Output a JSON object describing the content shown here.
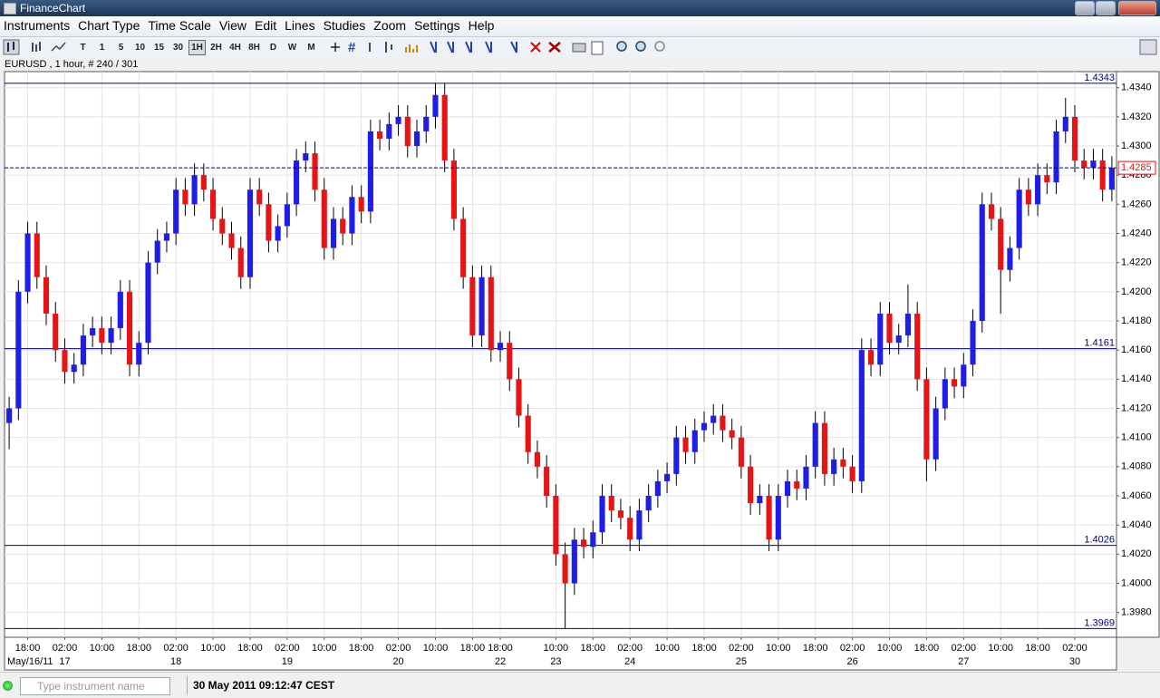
{
  "app": {
    "title": "FinanceChart",
    "menu": [
      "Instruments",
      "Chart Type",
      "Time Scale",
      "View",
      "Edit",
      "Lines",
      "Studies",
      "Zoom",
      "Settings",
      "Help"
    ],
    "timeframes": [
      "T",
      "1",
      "5",
      "10",
      "15",
      "30",
      "1H",
      "2H",
      "4H",
      "8H",
      "D",
      "W",
      "M"
    ],
    "search_placeholder": "Type instrument name",
    "clock": "30 May 2011 09:12:47 CEST"
  },
  "chart_data": {
    "type": "candlestick",
    "title": "EURUSD , 1 hour, # 240 / 301",
    "up_color": "#1e1ee6",
    "down_color": "#e61414",
    "wick_color": "#000000",
    "level_color": "#000080",
    "grid": true,
    "ylim": [
      1.3963,
      1.4351
    ],
    "yticks": [
      {
        "value": 1.398,
        "label": "1.3980"
      },
      {
        "value": 1.4,
        "label": "1.4000"
      },
      {
        "value": 1.402,
        "label": "1.4020"
      },
      {
        "value": 1.404,
        "label": "1.4040"
      },
      {
        "value": 1.406,
        "label": "1.4060"
      },
      {
        "value": 1.408,
        "label": "1.4080"
      },
      {
        "value": 1.41,
        "label": "1.4100"
      },
      {
        "value": 1.412,
        "label": "1.4120"
      },
      {
        "value": 1.414,
        "label": "1.4140"
      },
      {
        "value": 1.416,
        "label": "1.4160"
      },
      {
        "value": 1.418,
        "label": "1.4180"
      },
      {
        "value": 1.42,
        "label": "1.4200"
      },
      {
        "value": 1.422,
        "label": "1.4220"
      },
      {
        "value": 1.424,
        "label": "1.4240"
      },
      {
        "value": 1.426,
        "label": "1.4260"
      },
      {
        "value": 1.428,
        "label": "1.4280"
      },
      {
        "value": 1.43,
        "label": "1.4300"
      },
      {
        "value": 1.432,
        "label": "1.4320"
      },
      {
        "value": 1.434,
        "label": "1.4340"
      }
    ],
    "levels": [
      1.4343,
      1.4161,
      1.4026,
      1.3969
    ],
    "current_price": 1.4285,
    "categories": [
      null,
      null,
      "18:00",
      null,
      null,
      null,
      "02:00",
      null,
      null,
      null,
      "10:00",
      null,
      null,
      null,
      "18:00",
      null,
      null,
      null,
      "02:00",
      null,
      null,
      null,
      "10:00",
      null,
      null,
      null,
      "18:00",
      null,
      null,
      null,
      "02:00",
      null,
      null,
      null,
      "10:00",
      null,
      null,
      null,
      "18:00",
      null,
      null,
      null,
      "02:00",
      null,
      null,
      null,
      "10:00",
      null,
      null,
      null,
      "18:00",
      null,
      null,
      "18:00",
      null,
      null,
      null,
      null,
      null,
      "10:00",
      null,
      null,
      null,
      "18:00",
      null,
      null,
      null,
      "02:00",
      null,
      null,
      null,
      "10:00",
      null,
      null,
      null,
      "18:00",
      null,
      null,
      null,
      "02:00",
      null,
      null,
      null,
      "10:00",
      null,
      null,
      null,
      "18:00",
      null,
      null,
      null,
      "02:00",
      null,
      null,
      null,
      "10:00",
      null,
      null,
      null,
      "18:00",
      null,
      null,
      null,
      "02:00",
      null,
      null,
      null,
      "10:00",
      null,
      null,
      null,
      "18:00",
      null,
      null,
      null,
      "02:00",
      null,
      null,
      null,
      null
    ],
    "dates": [
      "May/16/11",
      null,
      null,
      null,
      null,
      null,
      "17",
      null,
      null,
      null,
      null,
      null,
      null,
      null,
      null,
      null,
      null,
      null,
      "18",
      null,
      null,
      null,
      null,
      null,
      null,
      null,
      null,
      null,
      null,
      null,
      "19",
      null,
      null,
      null,
      null,
      null,
      null,
      null,
      null,
      null,
      null,
      null,
      "20",
      null,
      null,
      null,
      null,
      null,
      null,
      null,
      null,
      null,
      null,
      "22",
      null,
      null,
      null,
      null,
      null,
      "23",
      null,
      null,
      null,
      null,
      null,
      null,
      null,
      "24",
      null,
      null,
      null,
      null,
      null,
      null,
      null,
      null,
      null,
      null,
      null,
      "25",
      null,
      null,
      null,
      null,
      null,
      null,
      null,
      null,
      null,
      null,
      null,
      "26",
      null,
      null,
      null,
      null,
      null,
      null,
      null,
      null,
      null,
      null,
      null,
      "27",
      null,
      null,
      null,
      null,
      null,
      null,
      null,
      null,
      null,
      null,
      null,
      "30",
      null,
      null,
      null,
      null
    ],
    "candles": [
      [
        1.411,
        1.4128,
        1.4092,
        1.412
      ],
      [
        1.412,
        1.4208,
        1.4112,
        1.42
      ],
      [
        1.42,
        1.4248,
        1.4192,
        1.424
      ],
      [
        1.424,
        1.4248,
        1.4202,
        1.421
      ],
      [
        1.421,
        1.4218,
        1.4177,
        1.4185
      ],
      [
        1.4185,
        1.4193,
        1.4152,
        1.416
      ],
      [
        1.416,
        1.4168,
        1.4137,
        1.4145
      ],
      [
        1.4145,
        1.4158,
        1.4137,
        1.415
      ],
      [
        1.415,
        1.4178,
        1.4142,
        1.417
      ],
      [
        1.417,
        1.4183,
        1.4162,
        1.4175
      ],
      [
        1.4175,
        1.4183,
        1.4157,
        1.4165
      ],
      [
        1.4165,
        1.4183,
        1.4157,
        1.4175
      ],
      [
        1.4175,
        1.4208,
        1.4167,
        1.42
      ],
      [
        1.42,
        1.4208,
        1.4142,
        1.415
      ],
      [
        1.415,
        1.4173,
        1.4142,
        1.4165
      ],
      [
        1.4165,
        1.4228,
        1.4157,
        1.422
      ],
      [
        1.422,
        1.4243,
        1.4212,
        1.4235
      ],
      [
        1.4235,
        1.4248,
        1.4227,
        1.424
      ],
      [
        1.424,
        1.4278,
        1.4232,
        1.427
      ],
      [
        1.427,
        1.4278,
        1.4252,
        1.426
      ],
      [
        1.426,
        1.4288,
        1.4252,
        1.428
      ],
      [
        1.428,
        1.4288,
        1.4262,
        1.427
      ],
      [
        1.427,
        1.4278,
        1.4242,
        1.425
      ],
      [
        1.425,
        1.4258,
        1.4232,
        1.424
      ],
      [
        1.424,
        1.4248,
        1.4222,
        1.423
      ],
      [
        1.423,
        1.4238,
        1.4202,
        1.421
      ],
      [
        1.421,
        1.4278,
        1.4202,
        1.427
      ],
      [
        1.427,
        1.4278,
        1.4252,
        1.426
      ],
      [
        1.426,
        1.4268,
        1.4227,
        1.4235
      ],
      [
        1.4235,
        1.4253,
        1.4227,
        1.4245
      ],
      [
        1.4245,
        1.4268,
        1.4237,
        1.426
      ],
      [
        1.426,
        1.4298,
        1.4252,
        1.429
      ],
      [
        1.429,
        1.4303,
        1.4282,
        1.4295
      ],
      [
        1.4295,
        1.4303,
        1.4262,
        1.427
      ],
      [
        1.427,
        1.4278,
        1.4222,
        1.423
      ],
      [
        1.423,
        1.4258,
        1.4222,
        1.425
      ],
      [
        1.425,
        1.4258,
        1.4232,
        1.424
      ],
      [
        1.424,
        1.4273,
        1.4232,
        1.4265
      ],
      [
        1.4265,
        1.4273,
        1.4247,
        1.4255
      ],
      [
        1.4255,
        1.4318,
        1.4247,
        1.431
      ],
      [
        1.431,
        1.4318,
        1.4297,
        1.4305
      ],
      [
        1.4305,
        1.4323,
        1.4297,
        1.4315
      ],
      [
        1.4315,
        1.4328,
        1.4307,
        1.432
      ],
      [
        1.432,
        1.4328,
        1.4292,
        1.43
      ],
      [
        1.43,
        1.4318,
        1.4292,
        1.431
      ],
      [
        1.431,
        1.4328,
        1.4302,
        1.432
      ],
      [
        1.432,
        1.4343,
        1.4312,
        1.4335
      ],
      [
        1.4335,
        1.4343,
        1.4282,
        1.429
      ],
      [
        1.429,
        1.4298,
        1.4242,
        1.425
      ],
      [
        1.425,
        1.4258,
        1.4202,
        1.421
      ],
      [
        1.421,
        1.4218,
        1.4162,
        1.417
      ],
      [
        1.417,
        1.4218,
        1.4162,
        1.421
      ],
      [
        1.421,
        1.4218,
        1.4152,
        1.416
      ],
      [
        1.416,
        1.4173,
        1.4152,
        1.4165
      ],
      [
        1.4165,
        1.4173,
        1.4132,
        1.414
      ],
      [
        1.414,
        1.4148,
        1.4107,
        1.4115
      ],
      [
        1.4115,
        1.4123,
        1.4082,
        1.409
      ],
      [
        1.409,
        1.4098,
        1.4072,
        1.408
      ],
      [
        1.408,
        1.4088,
        1.4052,
        1.406
      ],
      [
        1.406,
        1.4068,
        1.4012,
        1.402
      ],
      [
        1.402,
        1.4028,
        1.3969,
        1.4
      ],
      [
        1.4,
        1.4038,
        1.3992,
        1.403
      ],
      [
        1.403,
        1.4038,
        1.4017,
        1.4025
      ],
      [
        1.4025,
        1.4043,
        1.4017,
        1.4035
      ],
      [
        1.4035,
        1.4068,
        1.4027,
        1.406
      ],
      [
        1.406,
        1.4068,
        1.4042,
        1.405
      ],
      [
        1.405,
        1.4058,
        1.4037,
        1.4045
      ],
      [
        1.4045,
        1.4053,
        1.4022,
        1.403
      ],
      [
        1.403,
        1.4058,
        1.4022,
        1.405
      ],
      [
        1.405,
        1.4068,
        1.4042,
        1.406
      ],
      [
        1.406,
        1.4078,
        1.4052,
        1.407
      ],
      [
        1.407,
        1.4083,
        1.4062,
        1.4075
      ],
      [
        1.4075,
        1.4108,
        1.4067,
        1.41
      ],
      [
        1.41,
        1.4108,
        1.4082,
        1.409
      ],
      [
        1.409,
        1.4113,
        1.4082,
        1.4105
      ],
      [
        1.4105,
        1.4118,
        1.4097,
        1.411
      ],
      [
        1.411,
        1.4123,
        1.4102,
        1.4115
      ],
      [
        1.4115,
        1.4123,
        1.4097,
        1.4105
      ],
      [
        1.4105,
        1.4113,
        1.4092,
        1.41
      ],
      [
        1.41,
        1.4108,
        1.4072,
        1.408
      ],
      [
        1.408,
        1.4088,
        1.4047,
        1.4055
      ],
      [
        1.4055,
        1.4068,
        1.4047,
        1.406
      ],
      [
        1.406,
        1.4068,
        1.4022,
        1.403
      ],
      [
        1.403,
        1.4068,
        1.4022,
        1.406
      ],
      [
        1.406,
        1.4078,
        1.4052,
        1.407
      ],
      [
        1.407,
        1.4078,
        1.4057,
        1.4065
      ],
      [
        1.4065,
        1.4088,
        1.4057,
        1.408
      ],
      [
        1.408,
        1.4118,
        1.4072,
        1.411
      ],
      [
        1.411,
        1.4118,
        1.4067,
        1.4075
      ],
      [
        1.4075,
        1.4093,
        1.4067,
        1.4085
      ],
      [
        1.4085,
        1.4093,
        1.4072,
        1.408
      ],
      [
        1.408,
        1.4088,
        1.4062,
        1.407
      ],
      [
        1.407,
        1.4168,
        1.4062,
        1.416
      ],
      [
        1.416,
        1.4168,
        1.4142,
        1.415
      ],
      [
        1.415,
        1.4193,
        1.4142,
        1.4185
      ],
      [
        1.4185,
        1.4193,
        1.4157,
        1.4165
      ],
      [
        1.4165,
        1.4178,
        1.4157,
        1.417
      ],
      [
        1.417,
        1.4205,
        1.4162,
        1.4185
      ],
      [
        1.4185,
        1.4193,
        1.4132,
        1.414
      ],
      [
        1.414,
        1.4148,
        1.407,
        1.4085
      ],
      [
        1.4085,
        1.4128,
        1.4077,
        1.412
      ],
      [
        1.412,
        1.4148,
        1.4112,
        1.414
      ],
      [
        1.414,
        1.4148,
        1.4127,
        1.4135
      ],
      [
        1.4135,
        1.4158,
        1.4127,
        1.415
      ],
      [
        1.415,
        1.4188,
        1.4142,
        1.418
      ],
      [
        1.418,
        1.4268,
        1.4172,
        1.426
      ],
      [
        1.426,
        1.4268,
        1.4242,
        1.425
      ],
      [
        1.425,
        1.4258,
        1.4185,
        1.4215
      ],
      [
        1.4215,
        1.4238,
        1.4207,
        1.423
      ],
      [
        1.423,
        1.4278,
        1.4222,
        1.427
      ],
      [
        1.427,
        1.4278,
        1.4252,
        1.426
      ],
      [
        1.426,
        1.4288,
        1.4252,
        1.428
      ],
      [
        1.428,
        1.4288,
        1.4267,
        1.4275
      ],
      [
        1.4275,
        1.4318,
        1.4267,
        1.431
      ],
      [
        1.431,
        1.4333,
        1.4302,
        1.432
      ],
      [
        1.432,
        1.4328,
        1.4282,
        1.429
      ],
      [
        1.429,
        1.4298,
        1.4277,
        1.4285
      ],
      [
        1.4285,
        1.4298,
        1.4277,
        1.429
      ],
      [
        1.429,
        1.4298,
        1.4262,
        1.427
      ],
      [
        1.427,
        1.4293,
        1.4262,
        1.4285
      ]
    ]
  }
}
